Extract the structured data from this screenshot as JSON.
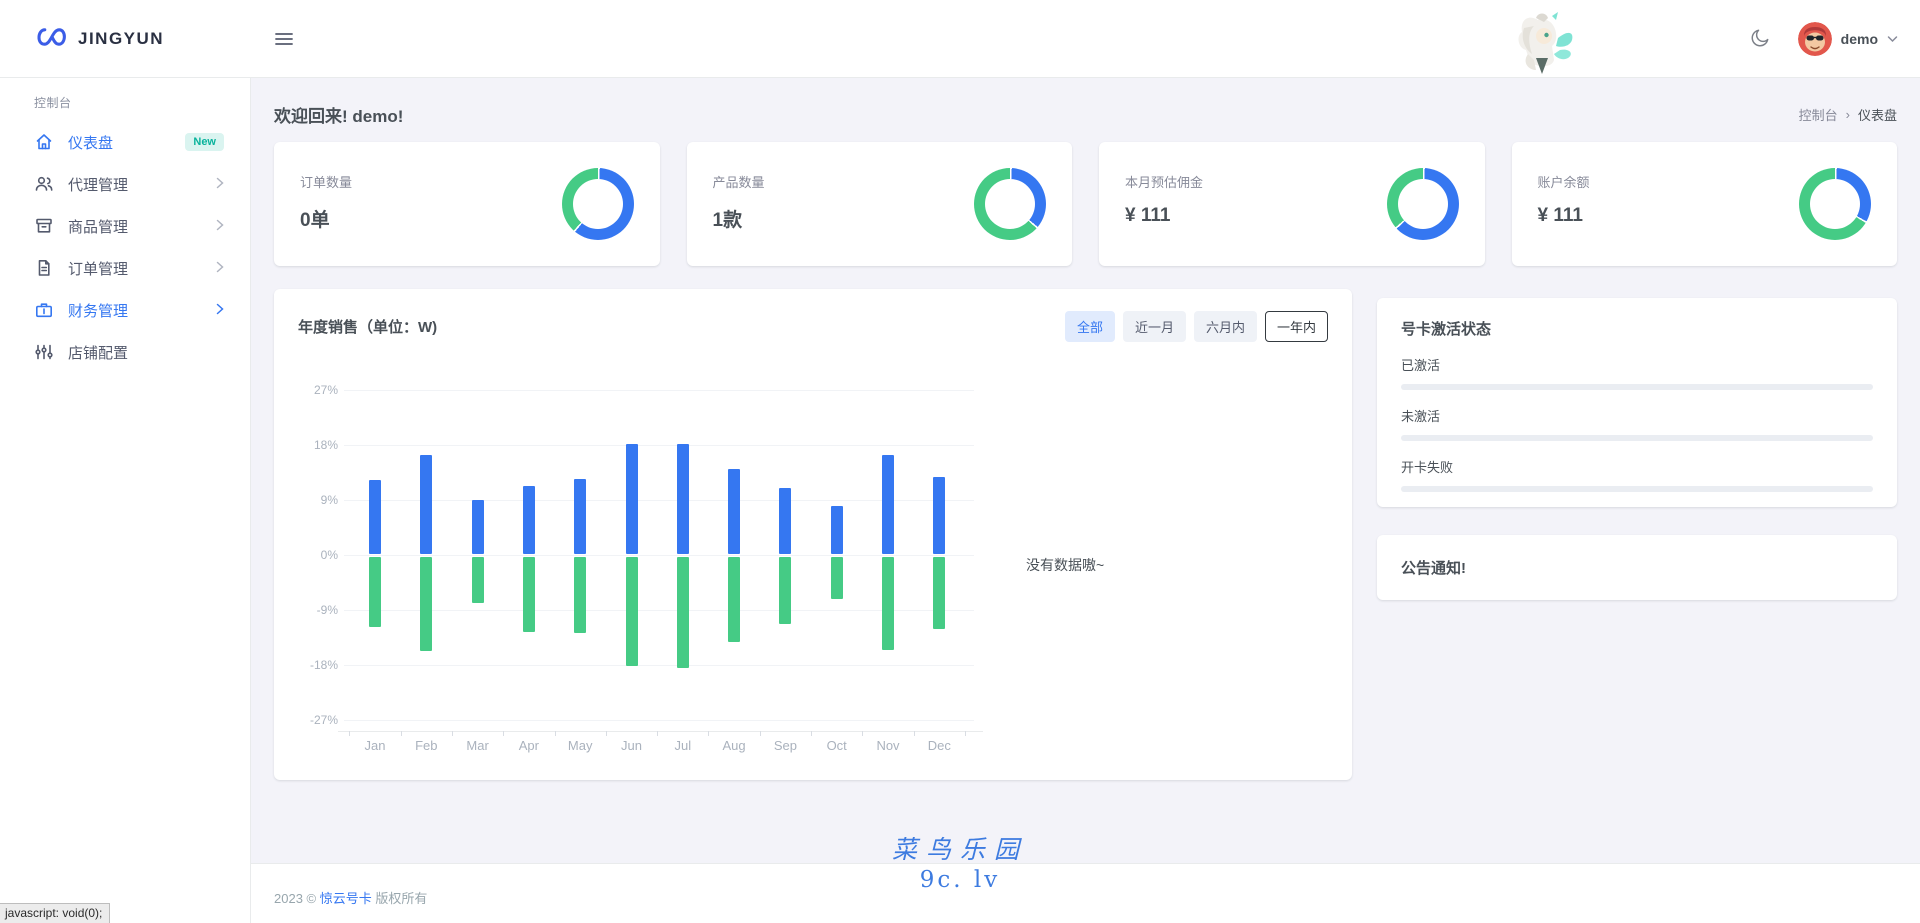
{
  "brand": {
    "name": "JINGYUN"
  },
  "topbar": {
    "user_name": "demo"
  },
  "sidebar": {
    "section_label": "控制台",
    "items": [
      {
        "label": "仪表盘",
        "icon": "home-icon",
        "active": true,
        "badge": "New"
      },
      {
        "label": "代理管理",
        "icon": "users-icon",
        "arrow": true
      },
      {
        "label": "商品管理",
        "icon": "box-icon",
        "arrow": true
      },
      {
        "label": "订单管理",
        "icon": "file-icon",
        "arrow": true
      },
      {
        "label": "财务管理",
        "icon": "briefcase-icon",
        "arrow": true,
        "highlighted": true
      },
      {
        "label": "店铺配置",
        "icon": "sliders-icon"
      }
    ]
  },
  "page": {
    "welcome": "欢迎回来! demo!",
    "breadcrumb_left": "控制台",
    "breadcrumb_separator": "›",
    "breadcrumb_right": "仪表盘"
  },
  "stat_cards": [
    {
      "label": "订单数量",
      "value": "0单",
      "donut": {
        "blue_pct": 61,
        "green_pct": 39
      }
    },
    {
      "label": "产品数量",
      "value": "1款",
      "donut": {
        "blue_pct": 36,
        "green_pct": 64
      }
    },
    {
      "label": "本月预估佣金",
      "value": "¥ 111",
      "donut": {
        "blue_pct": 63,
        "green_pct": 37
      }
    },
    {
      "label": "账户余额",
      "value": "¥ 111",
      "donut": {
        "blue_pct": 33,
        "green_pct": 67
      }
    }
  ],
  "chart_card": {
    "title": "年度销售（单位：W)",
    "filters": [
      {
        "label": "全部"
      },
      {
        "label": "近一月"
      },
      {
        "label": "六月内"
      },
      {
        "label": "一年内"
      }
    ],
    "empty_text": "没有数据嗷~"
  },
  "chart_data": {
    "type": "bar",
    "stacked": true,
    "title": "年度销售（单位：W)",
    "categories": [
      "Jan",
      "Feb",
      "Mar",
      "Apr",
      "May",
      "Jun",
      "Jul",
      "Aug",
      "Sep",
      "Oct",
      "Nov",
      "Dec"
    ],
    "series": [
      {
        "name": "positive",
        "color": "#3577f1",
        "values": [
          12.2,
          16.3,
          9.0,
          11.3,
          12.5,
          18.1,
          18.2,
          14.1,
          11.0,
          8.0,
          16.4,
          12.8
        ]
      },
      {
        "name": "negative",
        "color": "#45cb85",
        "values": [
          -11.8,
          -15.7,
          -7.9,
          -12.6,
          -12.7,
          -18.2,
          -18.5,
          -14.2,
          -11.3,
          -7.2,
          -15.6,
          -12.1
        ]
      }
    ],
    "yticks": [
      27,
      18,
      9,
      0,
      -9,
      -18,
      -27
    ],
    "ytick_suffix": "%",
    "ylim": [
      -27,
      27
    ],
    "grid": true,
    "legend": false
  },
  "activation_panel": {
    "title": "号卡激活状态",
    "items": [
      {
        "label": "已激活",
        "value_pct": 0
      },
      {
        "label": "未激活",
        "value_pct": 0
      },
      {
        "label": "开卡失败",
        "value_pct": 0
      }
    ]
  },
  "notice_panel": {
    "title": "公告通知!"
  },
  "watermark": {
    "line1": "菜鸟乐园",
    "line2": "9c. lv"
  },
  "footer": {
    "prefix": "2023 ©",
    "link": "惊云号卡",
    "suffix": "版权所有"
  },
  "statusbar": {
    "text": "javascript: void(0);"
  },
  "colors": {
    "primary": "#3577f1",
    "success": "#45cb85",
    "badge_bg": "#daf4f0",
    "badge_text": "#0ab39c",
    "body_bg": "#f3f3f9"
  }
}
